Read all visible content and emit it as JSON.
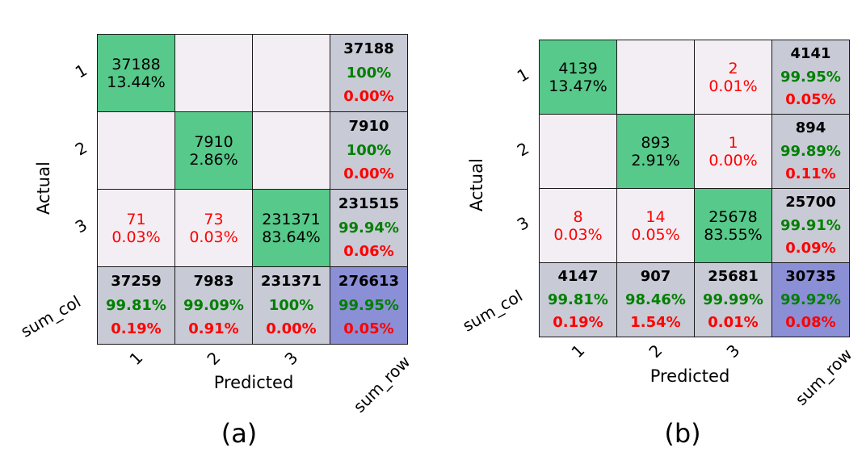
{
  "colors": {
    "diag": "#57c98a",
    "empty": "#f3eef3",
    "total": "#c8cad6",
    "corner": "#8b8fd6",
    "count_text": "#000000",
    "correct_text": "#008000",
    "error_text": "#ff0000"
  },
  "chart_data": [
    {
      "type": "heatmap",
      "caption": "(a)",
      "xlabel": "Predicted",
      "ylabel": "Actual",
      "row_labels": [
        "1",
        "2",
        "3",
        "sum_col"
      ],
      "col_labels": [
        "1",
        "2",
        "3",
        "sum_row"
      ],
      "matrix": [
        [
          37188,
          null,
          null
        ],
        [
          null,
          7910,
          null
        ],
        [
          71,
          73,
          231371
        ]
      ],
      "cell_percent": [
        [
          "13.44%",
          "",
          ""
        ],
        [
          "",
          "2.86%",
          ""
        ],
        [
          "0.03%",
          "0.03%",
          "83.64%"
        ]
      ],
      "row_totals": [
        {
          "count": "37188",
          "correct": "100%",
          "error": "0.00%"
        },
        {
          "count": "7910",
          "correct": "100%",
          "error": "0.00%"
        },
        {
          "count": "231515",
          "correct": "99.94%",
          "error": "0.06%"
        }
      ],
      "col_totals": [
        {
          "count": "37259",
          "correct": "99.81%",
          "error": "0.19%"
        },
        {
          "count": "7983",
          "correct": "99.09%",
          "error": "0.91%"
        },
        {
          "count": "231371",
          "correct": "100%",
          "error": "0.00%"
        }
      ],
      "grand_total": {
        "count": "276613",
        "correct": "99.95%",
        "error": "0.05%"
      }
    },
    {
      "type": "heatmap",
      "caption": "(b)",
      "xlabel": "Predicted",
      "ylabel": "Actual",
      "row_labels": [
        "1",
        "2",
        "3",
        "sum_col"
      ],
      "col_labels": [
        "1",
        "2",
        "3",
        "sum_row"
      ],
      "matrix": [
        [
          4139,
          null,
          2
        ],
        [
          null,
          893,
          1
        ],
        [
          8,
          14,
          25678
        ]
      ],
      "cell_percent": [
        [
          "13.47%",
          "",
          "0.01%"
        ],
        [
          "",
          "2.91%",
          "0.00%"
        ],
        [
          "0.03%",
          "0.05%",
          "83.55%"
        ]
      ],
      "row_totals": [
        {
          "count": "4141",
          "correct": "99.95%",
          "error": "0.05%"
        },
        {
          "count": "894",
          "correct": "99.89%",
          "error": "0.11%"
        },
        {
          "count": "25700",
          "correct": "99.91%",
          "error": "0.09%"
        }
      ],
      "col_totals": [
        {
          "count": "4147",
          "correct": "99.81%",
          "error": "0.19%"
        },
        {
          "count": "907",
          "correct": "98.46%",
          "error": "1.54%"
        },
        {
          "count": "25681",
          "correct": "99.99%",
          "error": "0.01%"
        }
      ],
      "grand_total": {
        "count": "30735",
        "correct": "99.92%",
        "error": "0.08%"
      }
    }
  ]
}
